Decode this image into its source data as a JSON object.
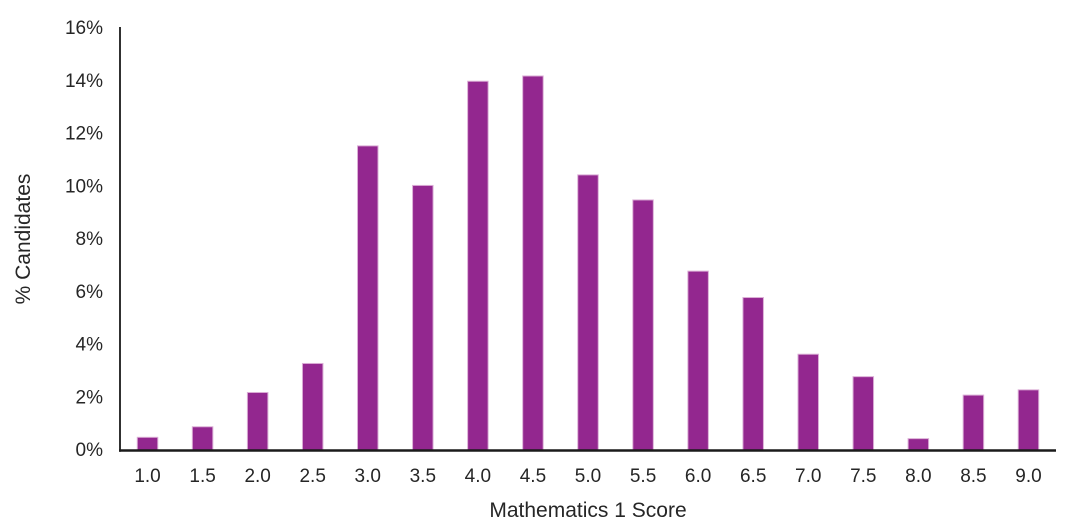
{
  "chart_data": {
    "type": "bar",
    "title": "",
    "xlabel": "Mathematics 1 Score",
    "ylabel": "% Candidates",
    "categories": [
      "1.0",
      "1.5",
      "2.0",
      "2.5",
      "3.0",
      "3.5",
      "4.0",
      "4.5",
      "5.0",
      "5.5",
      "6.0",
      "6.5",
      "7.0",
      "7.5",
      "8.0",
      "8.5",
      "9.0"
    ],
    "values": [
      0.5,
      0.9,
      2.2,
      3.3,
      11.55,
      10.05,
      14.0,
      14.2,
      10.45,
      9.5,
      6.8,
      5.8,
      3.65,
      2.8,
      0.45,
      2.1,
      2.3
    ],
    "ylim": [
      0,
      16
    ],
    "ytick_step": 2,
    "ytick_labels": [
      "0%",
      "2%",
      "4%",
      "6%",
      "8%",
      "10%",
      "12%",
      "14%",
      "16%"
    ],
    "grid": false,
    "legend": "none",
    "bar_color": "#93278F",
    "bar_edge_color": "#dbaed6",
    "axis_color": "#1a1a1a",
    "text_color": "#262626"
  }
}
